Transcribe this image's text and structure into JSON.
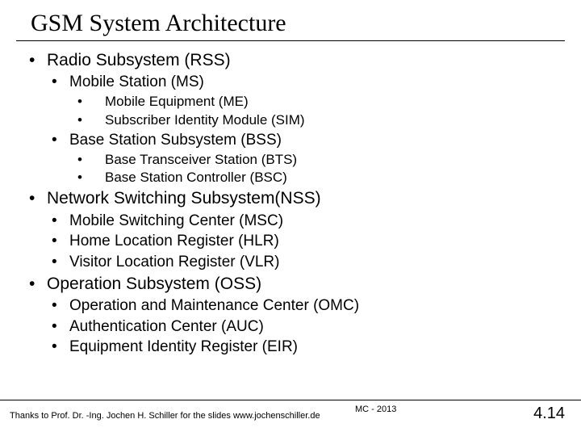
{
  "title": "GSM System Architecture",
  "title_fontsize": 30,
  "title_font": "Times New Roman",
  "body_font": "Verdana",
  "text_color": "#000000",
  "background_color": "#ffffff",
  "rule_color": "#000000",
  "bullets": {
    "rss": "Radio Subsystem (RSS)",
    "ms": "Mobile Station (MS)",
    "me": "Mobile Equipment (ME)",
    "sim": "Subscriber Identity Module (SIM)",
    "bss": "Base Station Subsystem (BSS)",
    "bts": "Base Transceiver Station (BTS)",
    "bsc": "Base Station Controller (BSC)",
    "nss": "Network Switching Subsystem(NSS)",
    "msc": "Mobile Switching Center (MSC)",
    "hlr": "Home Location Register (HLR)",
    "vlr": "Visitor Location Register (VLR)",
    "oss": " Operation Subsystem (OSS)",
    "omc": "Operation and Maintenance Center (OMC)",
    "auc": "Authentication Center (AUC)",
    "eir": "Equipment Identity Register (EIR)"
  },
  "level_fontsizes": {
    "l1": 21,
    "l2": 19,
    "l3": 17
  },
  "footer": {
    "credit": "Thanks to Prof. Dr. -Ing. Jochen H. Schiller for the slides  www.jochenschiller.de",
    "course": "MC - 2013",
    "page": "4.14"
  }
}
